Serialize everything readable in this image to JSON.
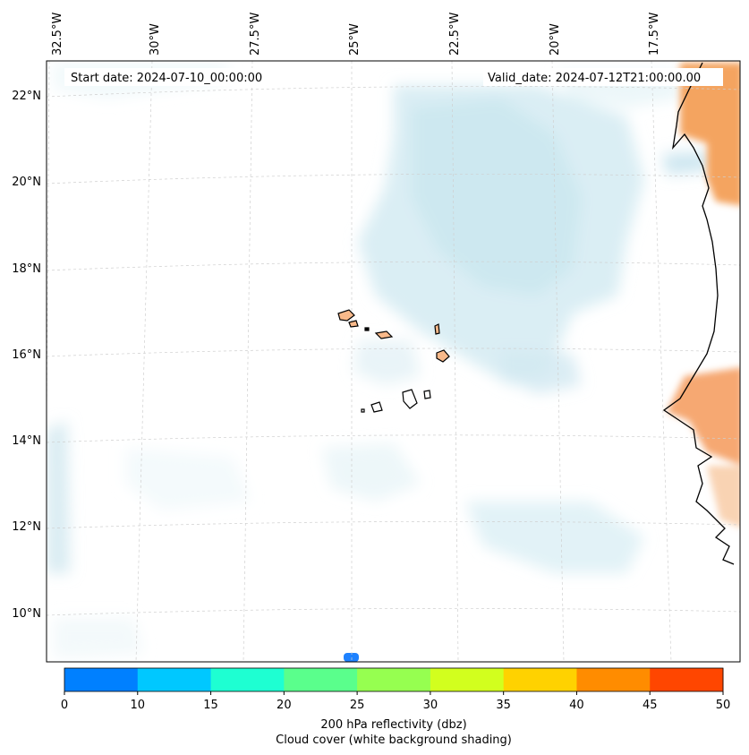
{
  "start_date": "Start date: 2024-07-10_00:00:00",
  "valid_date": "Valid_date: 2024-07-12T21:00:00.00",
  "lon_labels": [
    "32.5°W",
    "30°W",
    "27.5°W",
    "25°W",
    "22.5°W",
    "20°W",
    "17.5°W"
  ],
  "lat_labels": [
    "22°N",
    "20°N",
    "18°N",
    "16°N",
    "14°N",
    "12°N",
    "10°N"
  ],
  "colorbar": {
    "title": "200 hPa reflectivity (dbz)",
    "subtitle": "Cloud cover (white background shading)",
    "ticks": [
      "0",
      "10",
      "15",
      "20",
      "25",
      "30",
      "35",
      "40",
      "45",
      "50"
    ],
    "colors": [
      "#0080ff",
      "#00c8ff",
      "#1effd2",
      "#5aff8c",
      "#96ff50",
      "#d2ff1e",
      "#ffd200",
      "#ff8c00",
      "#ff4600"
    ]
  }
}
